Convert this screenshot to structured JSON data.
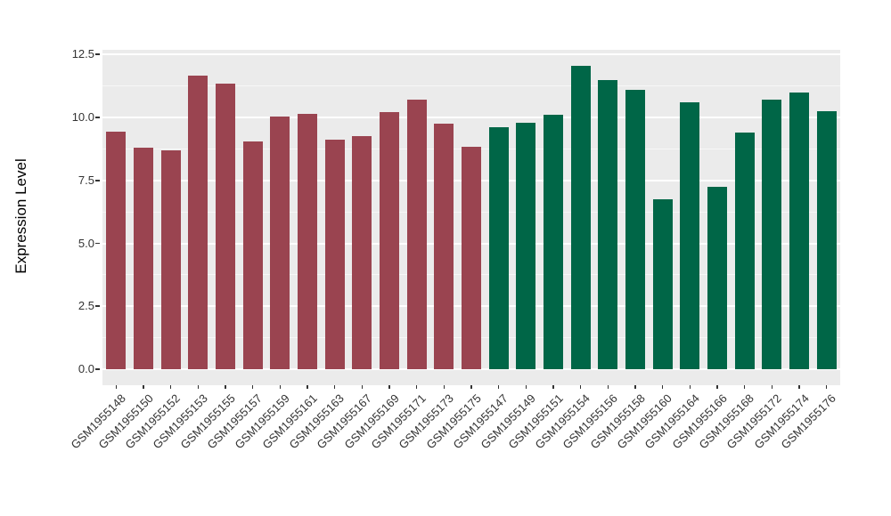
{
  "chart_data": {
    "type": "bar",
    "title": "",
    "xlabel": "",
    "ylabel": "Expression Level",
    "ylim": [
      0,
      12.5
    ],
    "ytick_values": [
      0,
      2.5,
      5,
      7.5,
      10,
      12.5
    ],
    "ytick_labels": [
      "0.0",
      "2.5",
      "5.0",
      "7.5",
      "10.0",
      "12.5"
    ],
    "yminor_values": [
      1.25,
      3.75,
      6.25,
      8.75,
      11.25
    ],
    "grid": "white major and minor horizontal lines on grey panel",
    "legend": "none",
    "panel_bg": "#EBEBEB",
    "grid_major_color": "#FFFFFF",
    "grid_minor_color": "#F7F7F7",
    "axis_text_color": "#333333",
    "x_label_angle_deg": 45,
    "groups": [
      {
        "name": "group-maroon",
        "color": "#9A4450"
      },
      {
        "name": "group-green",
        "color": "#006647"
      }
    ],
    "categories": [
      "GSM1955148",
      "GSM1955150",
      "GSM1955152",
      "GSM1955153",
      "GSM1955155",
      "GSM1955157",
      "GSM1955159",
      "GSM1955161",
      "GSM1955163",
      "GSM1955167",
      "GSM1955169",
      "GSM1955171",
      "GSM1955173",
      "GSM1955175",
      "GSM1955147",
      "GSM1955149",
      "GSM1955151",
      "GSM1955154",
      "GSM1955156",
      "GSM1955158",
      "GSM1955160",
      "GSM1955164",
      "GSM1955166",
      "GSM1955168",
      "GSM1955172",
      "GSM1955174",
      "GSM1955176"
    ],
    "values": [
      9.45,
      8.8,
      8.7,
      11.65,
      11.35,
      9.05,
      10.05,
      10.15,
      9.1,
      9.25,
      10.2,
      10.7,
      9.75,
      8.85,
      9.6,
      9.8,
      10.1,
      12.05,
      11.5,
      11.1,
      6.75,
      10.6,
      7.25,
      9.4,
      10.7,
      11.0,
      10.25
    ],
    "bar_group_index": [
      0,
      0,
      0,
      0,
      0,
      0,
      0,
      0,
      0,
      0,
      0,
      0,
      0,
      0,
      1,
      1,
      1,
      1,
      1,
      1,
      1,
      1,
      1,
      1,
      1,
      1,
      1
    ]
  }
}
